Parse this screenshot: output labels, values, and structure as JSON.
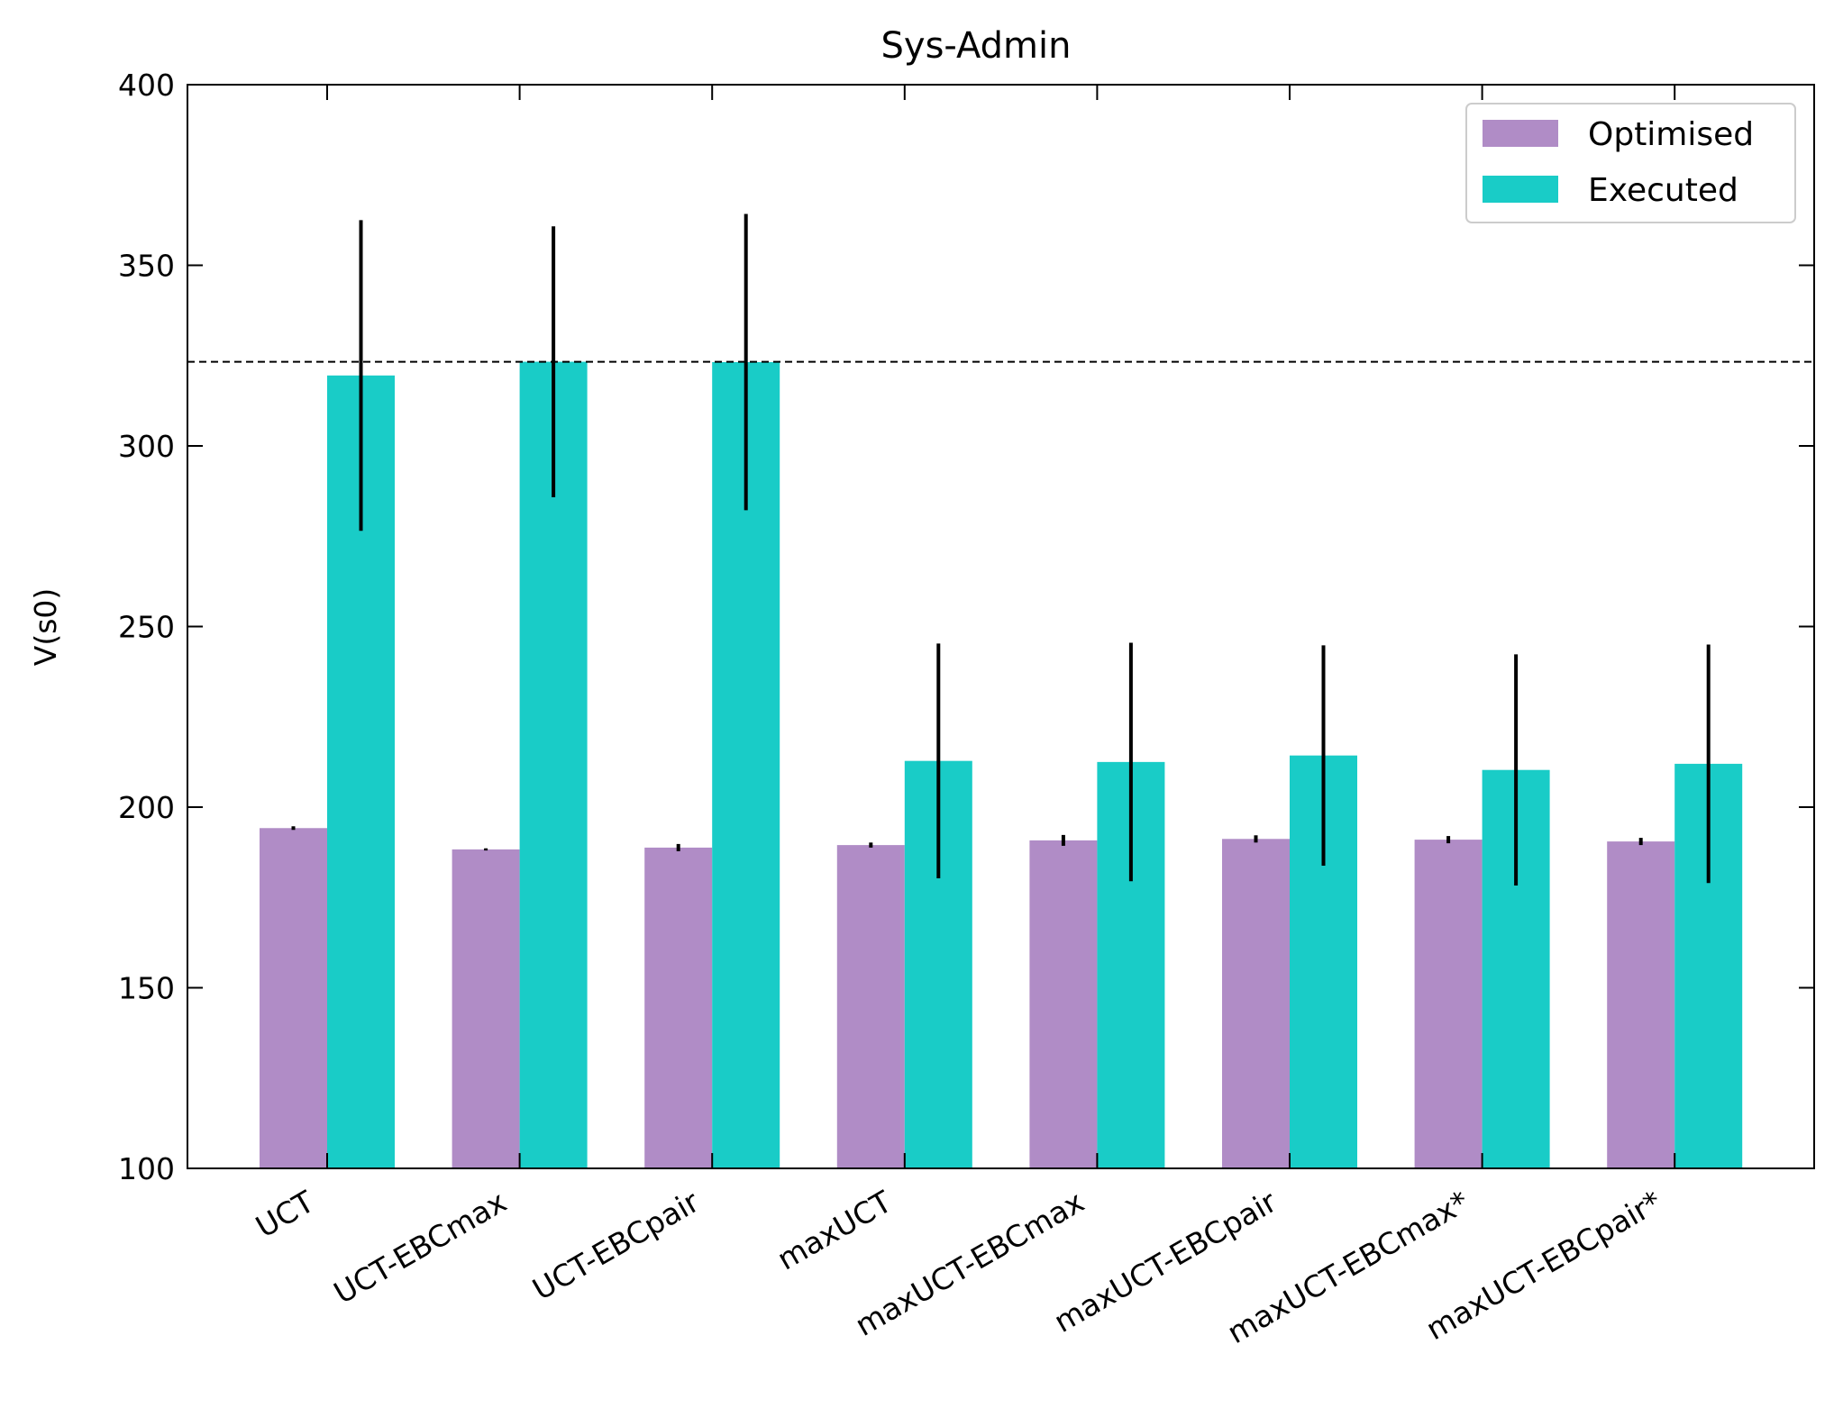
{
  "chart_data": {
    "type": "bar",
    "title": "Sys-Admin",
    "xlabel": "",
    "ylabel": "V(s0)",
    "ylim": [
      100,
      400
    ],
    "yticks": [
      100,
      150,
      200,
      250,
      300,
      350,
      400
    ],
    "categories": [
      "UCT",
      "UCT-EBCmax",
      "UCT-EBCpair",
      "maxUCT",
      "maxUCT-EBCmax",
      "maxUCT-EBCpair",
      "maxUCT-EBCmax*",
      "maxUCT-EBCpair*"
    ],
    "series": [
      {
        "name": "Optimised",
        "color": "#b08cc6",
        "values": [
          194.2,
          188.3,
          188.8,
          189.5,
          190.8,
          191.2,
          191.0,
          190.5
        ],
        "errors": [
          0.5,
          0.3,
          1.0,
          0.7,
          1.5,
          1.0,
          1.0,
          1.0
        ]
      },
      {
        "name": "Executed",
        "color": "#19ccc7",
        "values": [
          319.5,
          323.3,
          323.2,
          212.8,
          212.5,
          214.3,
          210.3,
          212.0
        ],
        "errors": [
          43.0,
          37.5,
          41.0,
          32.5,
          33.0,
          30.5,
          32.0,
          33.0
        ]
      }
    ],
    "reference_line": {
      "y": 323.3,
      "style": "dashed",
      "color": "#000000"
    },
    "error_bar_color": "#000000",
    "legend": {
      "position": "top-right"
    },
    "grid": false
  }
}
